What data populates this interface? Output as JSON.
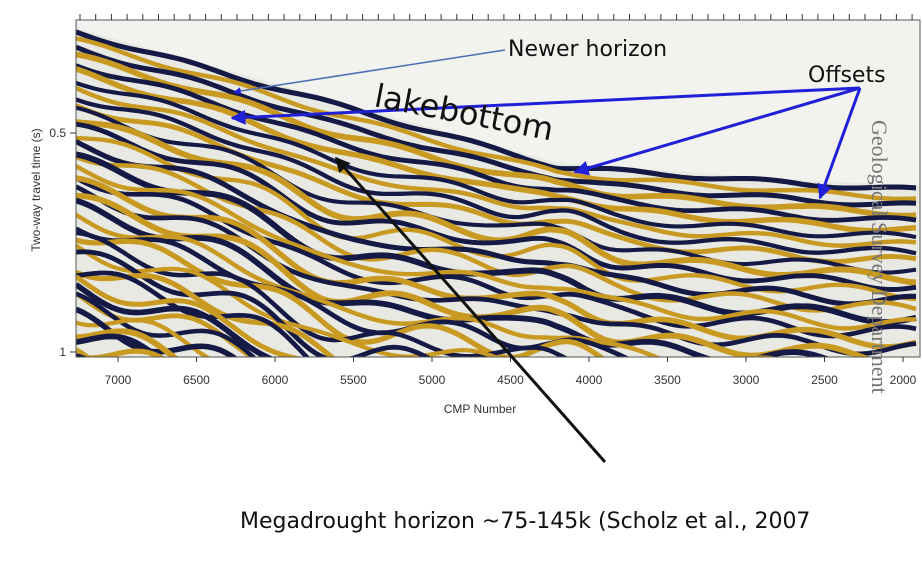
{
  "figure": {
    "y_axis": {
      "label": "Two-way travel time (s)",
      "ticks": [
        0.5,
        1
      ]
    },
    "x_axis": {
      "label": "CMP Number",
      "ticks": [
        7000,
        6500,
        6000,
        5500,
        5000,
        4500,
        4000,
        3500,
        3000,
        2500,
        2000
      ]
    },
    "annotations": {
      "newer_horizon": "Newer horizon",
      "offsets": "Offsets",
      "lakebottom": "lakebottom",
      "megadrought": "Megadrought horizon ~75-145k (Scholz et al., 2007"
    },
    "watermark": "Geological Survey Department"
  }
}
